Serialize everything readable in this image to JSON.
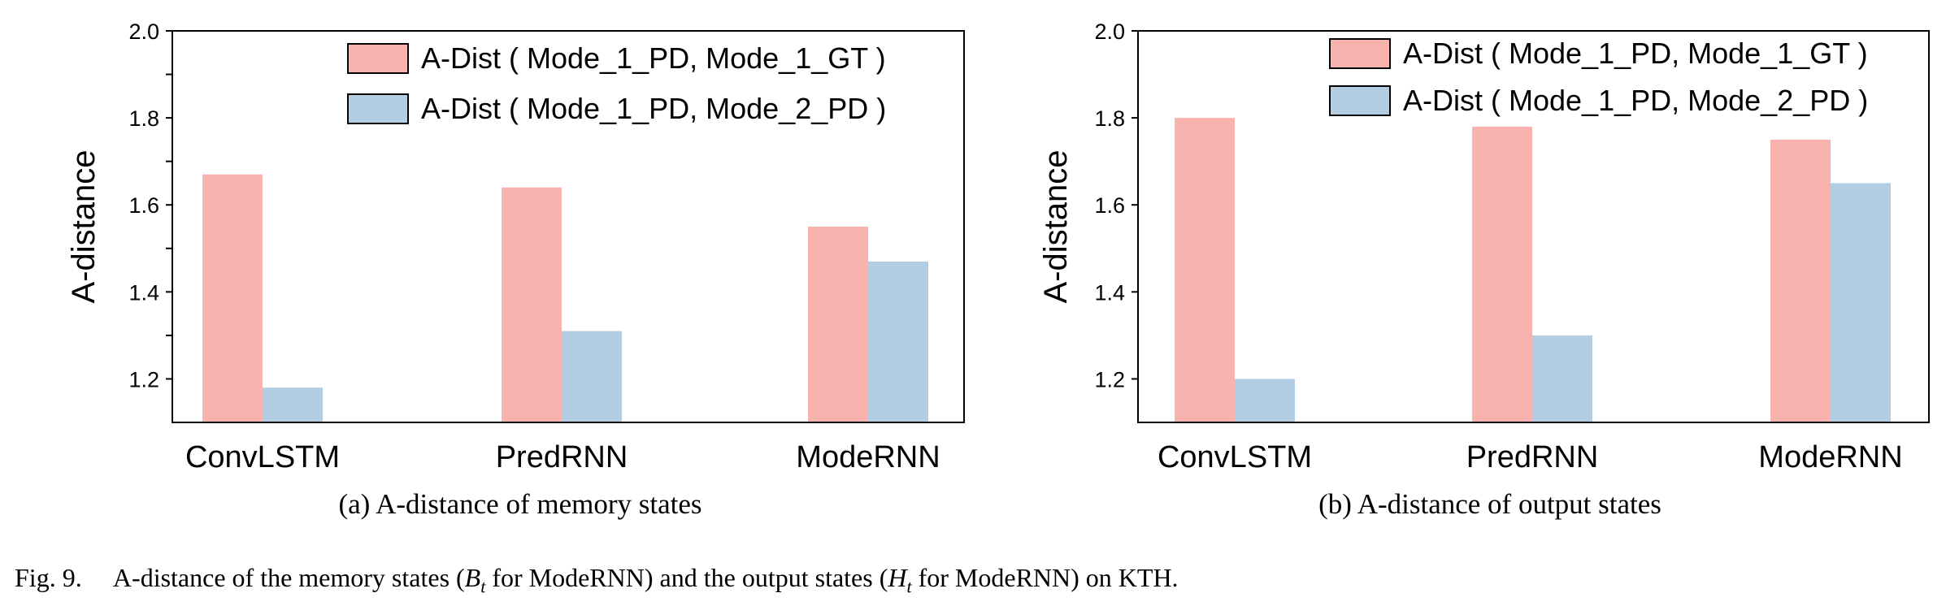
{
  "colors": {
    "gt": "#f9b3ae",
    "pd": "#b3cde3"
  },
  "chart_data": [
    {
      "type": "bar",
      "categories": [
        "ConvLSTM",
        "PredRNN",
        "ModeRNN"
      ],
      "series": [
        {
          "name": "A-Dist ( Mode_1_PD, Mode_1_GT )",
          "values": [
            1.67,
            1.64,
            1.55
          ]
        },
        {
          "name": "A-Dist ( Mode_1_PD, Mode_2_PD )",
          "values": [
            1.18,
            1.31,
            1.47
          ]
        }
      ],
      "ylabel": "A-distance",
      "ylim": [
        1.1,
        2.0
      ],
      "yticks": [
        "2.0",
        "1.8",
        "1.6",
        "1.4",
        "1.2"
      ],
      "ytick_values": [
        2.0,
        1.8,
        1.6,
        1.4,
        1.2
      ],
      "minor_ticks": [
        1.9,
        1.7,
        1.5,
        1.3
      ],
      "caption": "(a)  A-distance of memory states",
      "legend": "top-right"
    },
    {
      "type": "bar",
      "categories": [
        "ConvLSTM",
        "PredRNN",
        "ModeRNN"
      ],
      "series": [
        {
          "name": "A-Dist ( Mode_1_PD, Mode_1_GT )",
          "values": [
            1.8,
            1.78,
            1.75
          ]
        },
        {
          "name": "A-Dist ( Mode_1_PD, Mode_2_PD )",
          "values": [
            1.2,
            1.3,
            1.65
          ]
        }
      ],
      "ylabel": "A-distance",
      "ylim": [
        1.1,
        2.0
      ],
      "yticks": [
        "2.0",
        "1.8",
        "1.6",
        "1.4",
        "1.2"
      ],
      "ytick_values": [
        2.0,
        1.8,
        1.6,
        1.4,
        1.2
      ],
      "minor_ticks": [],
      "caption": "(b)  A-distance of output states",
      "legend": "top-right"
    }
  ],
  "figure_caption": {
    "label": "Fig. 9.",
    "text_1": "A-distance of the memory states (",
    "sym_b": "B",
    "sub_t1": "t",
    "text_2": " for ModeRNN) and the output states (",
    "sym_h": "H",
    "sub_t2": "t",
    "text_3": " for ModeRNN) on KTH."
  }
}
